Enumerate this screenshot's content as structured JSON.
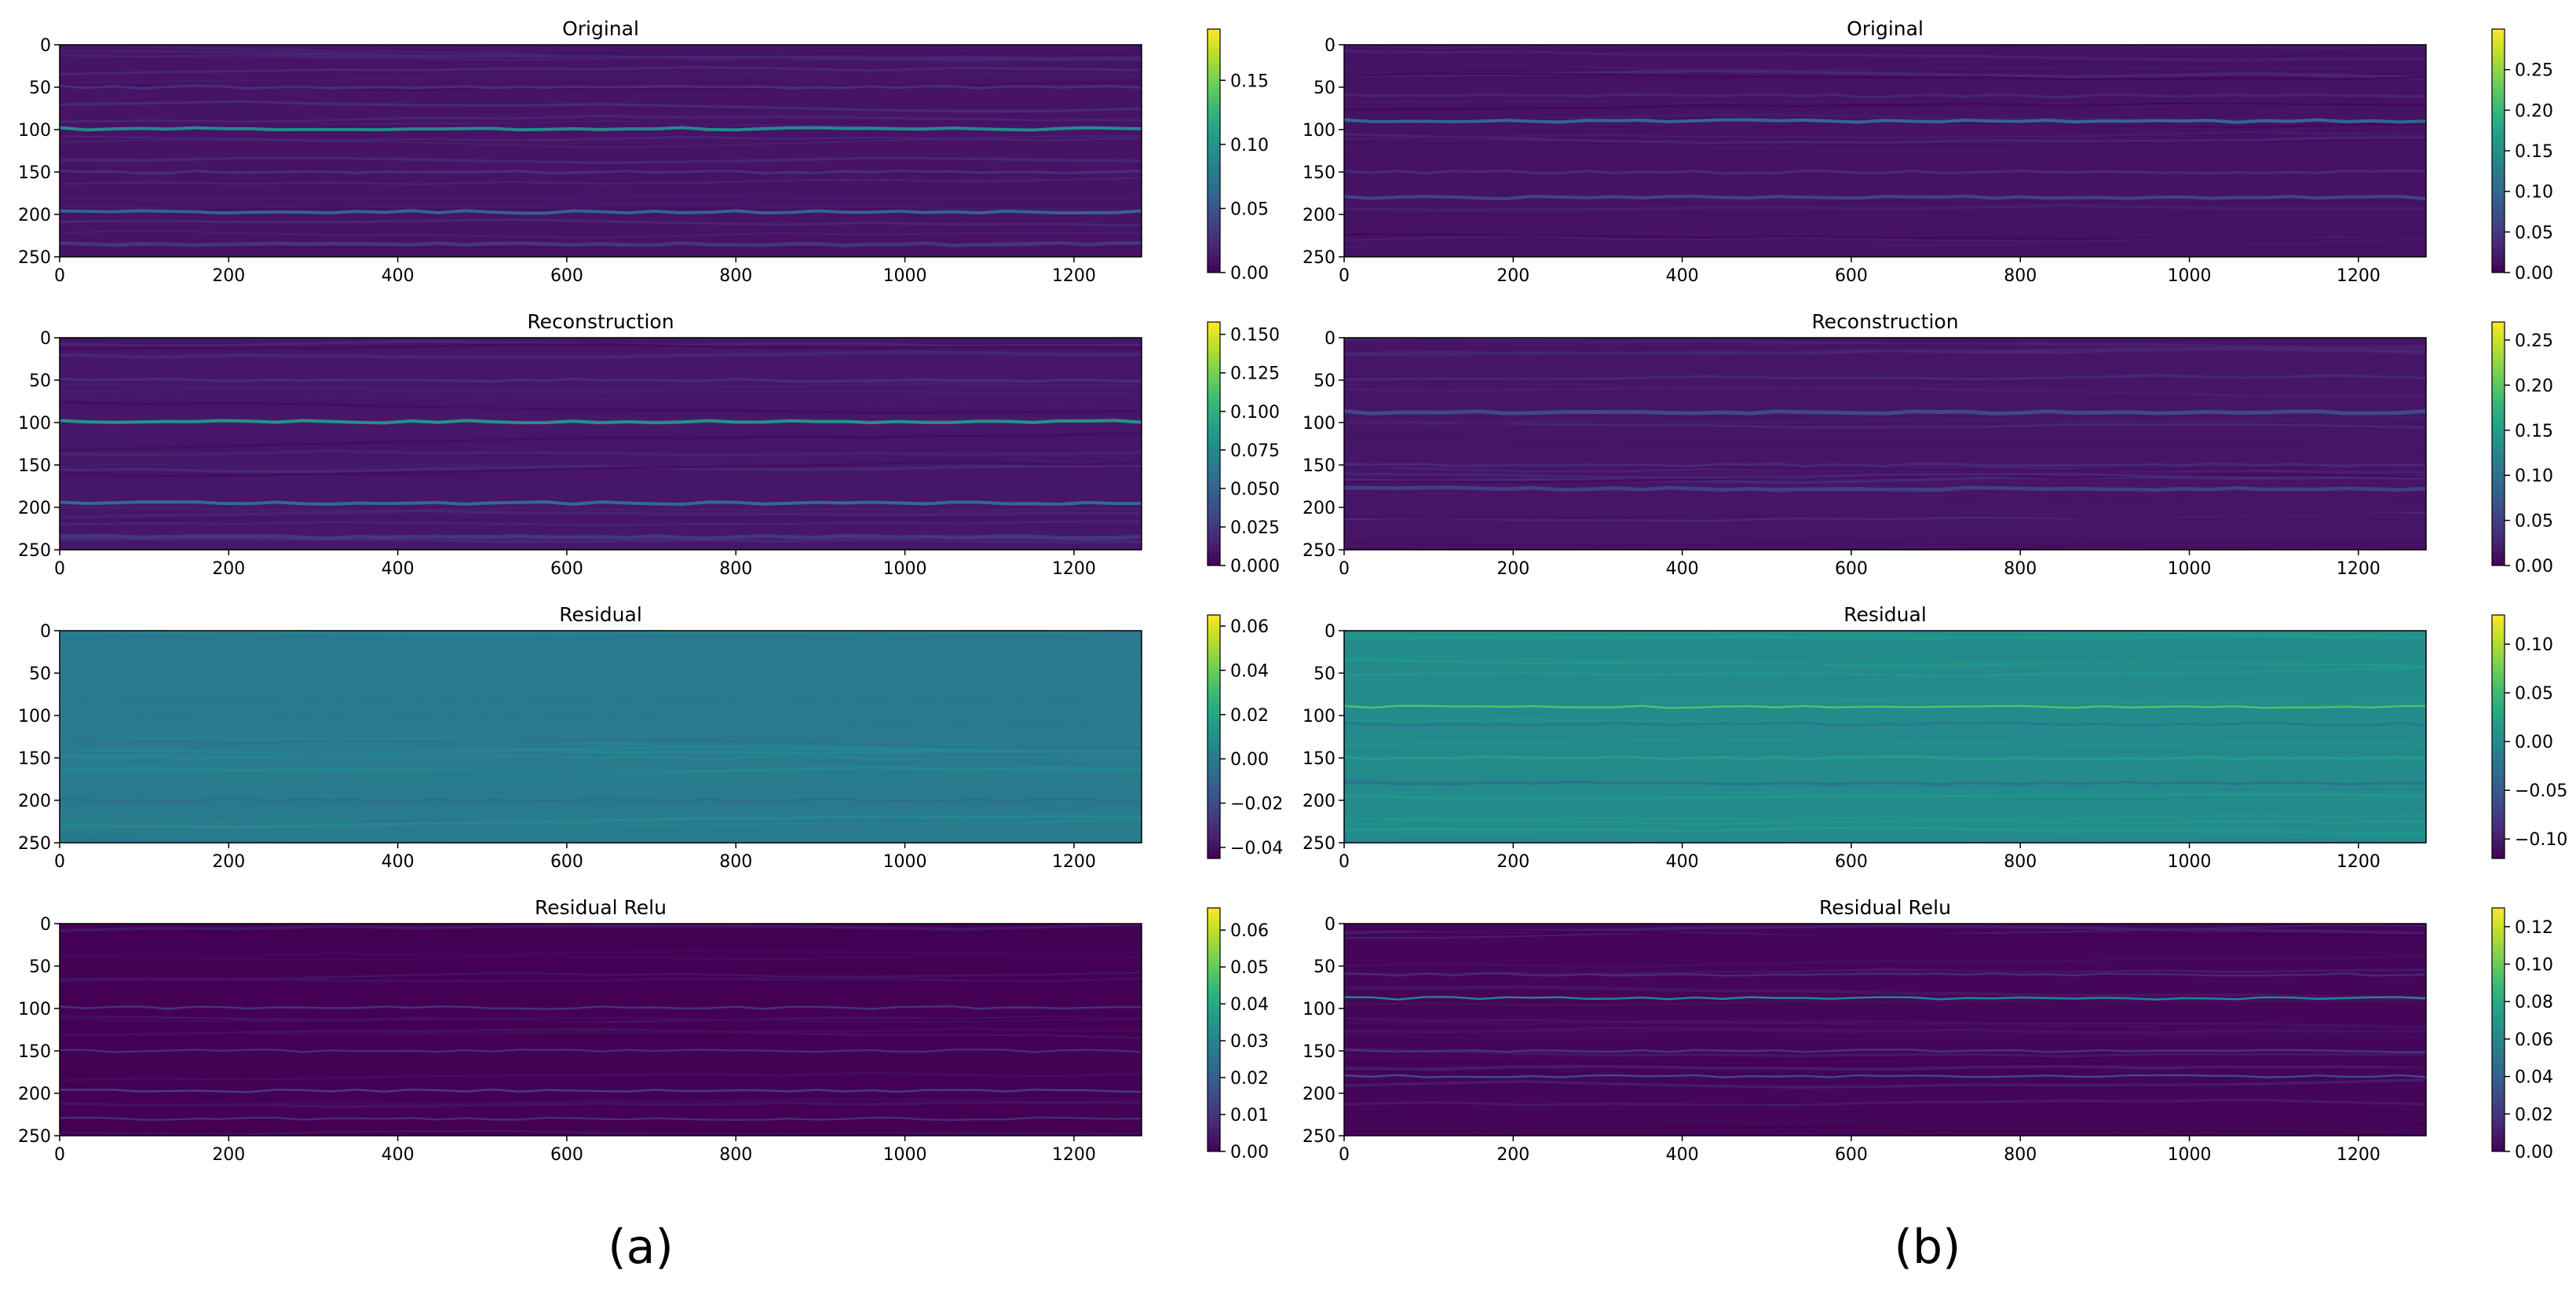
{
  "figure": {
    "panel_labels": [
      "(a)",
      "(b)"
    ]
  },
  "colormap": {
    "name": "viridis",
    "stops": [
      "#440154",
      "#482878",
      "#3e4a89",
      "#31688e",
      "#26828e",
      "#1f9e89",
      "#35b779",
      "#6ece58",
      "#b5de2b",
      "#fde725"
    ]
  },
  "chart_data": [
    {
      "type": "heatmap",
      "panel": "(a)",
      "title": "Original",
      "xlim": [
        0,
        1280
      ],
      "ylim": [
        250,
        0
      ],
      "xticks": [
        0,
        200,
        400,
        600,
        800,
        1000,
        1200
      ],
      "yticks": [
        0,
        50,
        100,
        150,
        200,
        250
      ],
      "colorbar": {
        "range": [
          0,
          0.19
        ],
        "ticks": [
          "0.00",
          "0.05",
          "0.10",
          "0.15"
        ]
      },
      "background_level": 0.01,
      "bands": [
        {
          "row": 99,
          "intensity": 0.09,
          "width": 2.5
        },
        {
          "row": 197,
          "intensity": 0.06,
          "width": 2.5
        },
        {
          "row": 235,
          "intensity": 0.03,
          "width": 3
        },
        {
          "row": 50,
          "intensity": 0.025,
          "width": 2
        },
        {
          "row": 150,
          "intensity": 0.025,
          "width": 2
        }
      ]
    },
    {
      "type": "heatmap",
      "panel": "(a)",
      "title": "Reconstruction",
      "xlim": [
        0,
        1280
      ],
      "ylim": [
        250,
        0
      ],
      "xticks": [
        0,
        200,
        400,
        600,
        800,
        1000,
        1200
      ],
      "yticks": [
        0,
        50,
        100,
        150,
        200,
        250
      ],
      "colorbar": {
        "range": [
          0,
          0.158
        ],
        "ticks": [
          "0.000",
          "0.025",
          "0.050",
          "0.075",
          "0.100",
          "0.125",
          "0.150"
        ]
      },
      "background_level": 0.01,
      "bands": [
        {
          "row": 99,
          "intensity": 0.08,
          "width": 2.5
        },
        {
          "row": 195,
          "intensity": 0.055,
          "width": 2.5
        },
        {
          "row": 235,
          "intensity": 0.025,
          "width": 3
        },
        {
          "row": 50,
          "intensity": 0.02,
          "width": 2
        }
      ]
    },
    {
      "type": "heatmap",
      "panel": "(a)",
      "title": "Residual",
      "xlim": [
        0,
        1280
      ],
      "ylim": [
        250,
        0
      ],
      "xticks": [
        0,
        200,
        400,
        600,
        800,
        1000,
        1200
      ],
      "yticks": [
        0,
        50,
        100,
        150,
        200,
        250
      ],
      "colorbar": {
        "range": [
          -0.045,
          0.065
        ],
        "ticks": [
          "−0.04",
          "−0.02",
          "0.00",
          "0.02",
          "0.04",
          "0.06"
        ]
      },
      "background_level": 0.0,
      "bands": [
        {
          "row": 200,
          "intensity": -0.006,
          "width": 2
        },
        {
          "row": 150,
          "intensity": 0.004,
          "width": 2
        }
      ]
    },
    {
      "type": "heatmap",
      "panel": "(a)",
      "title": "Residual Relu",
      "xlim": [
        0,
        1280
      ],
      "ylim": [
        250,
        0
      ],
      "xticks": [
        0,
        200,
        400,
        600,
        800,
        1000,
        1200
      ],
      "yticks": [
        0,
        50,
        100,
        150,
        200,
        250
      ],
      "colorbar": {
        "range": [
          0,
          0.066
        ],
        "ticks": [
          "0.00",
          "0.01",
          "0.02",
          "0.03",
          "0.04",
          "0.05",
          "0.06"
        ]
      },
      "background_level": 0.0,
      "bands": [
        {
          "row": 197,
          "intensity": 0.012,
          "width": 1.5
        },
        {
          "row": 99,
          "intensity": 0.01,
          "width": 1.5
        },
        {
          "row": 150,
          "intensity": 0.008,
          "width": 1.5
        },
        {
          "row": 230,
          "intensity": 0.008,
          "width": 1.5
        }
      ]
    },
    {
      "type": "heatmap",
      "panel": "(b)",
      "title": "Original",
      "xlim": [
        0,
        1280
      ],
      "ylim": [
        250,
        0
      ],
      "xticks": [
        0,
        200,
        400,
        600,
        800,
        1000,
        1200
      ],
      "yticks": [
        0,
        50,
        100,
        150,
        200,
        250
      ],
      "colorbar": {
        "range": [
          0,
          0.3
        ],
        "ticks": [
          "0.00",
          "0.05",
          "0.10",
          "0.15",
          "0.20",
          "0.25"
        ]
      },
      "background_level": 0.015,
      "bands": [
        {
          "row": 90,
          "intensity": 0.1,
          "width": 2.5
        },
        {
          "row": 180,
          "intensity": 0.06,
          "width": 2.5
        },
        {
          "row": 150,
          "intensity": 0.035,
          "width": 2
        },
        {
          "row": 60,
          "intensity": 0.03,
          "width": 2
        }
      ]
    },
    {
      "type": "heatmap",
      "panel": "(b)",
      "title": "Reconstruction",
      "xlim": [
        0,
        1280
      ],
      "ylim": [
        250,
        0
      ],
      "xticks": [
        0,
        200,
        400,
        600,
        800,
        1000,
        1200
      ],
      "yticks": [
        0,
        50,
        100,
        150,
        200,
        250
      ],
      "colorbar": {
        "range": [
          0,
          0.27
        ],
        "ticks": [
          "0.00",
          "0.05",
          "0.10",
          "0.15",
          "0.20",
          "0.25"
        ]
      },
      "background_level": 0.015,
      "bands": [
        {
          "row": 88,
          "intensity": 0.06,
          "width": 3
        },
        {
          "row": 178,
          "intensity": 0.05,
          "width": 3
        },
        {
          "row": 150,
          "intensity": 0.03,
          "width": 2
        }
      ]
    },
    {
      "type": "heatmap",
      "panel": "(b)",
      "title": "Residual",
      "xlim": [
        0,
        1280
      ],
      "ylim": [
        250,
        0
      ],
      "xticks": [
        0,
        200,
        400,
        600,
        800,
        1000,
        1200
      ],
      "yticks": [
        0,
        50,
        100,
        150,
        200,
        250
      ],
      "colorbar": {
        "range": [
          -0.12,
          0.13
        ],
        "ticks": [
          "−0.10",
          "−0.05",
          "0.00",
          "0.05",
          "0.10"
        ]
      },
      "background_level": 0.0,
      "bands": [
        {
          "row": 90,
          "intensity": 0.06,
          "width": 1.5
        },
        {
          "row": 150,
          "intensity": 0.02,
          "width": 2
        },
        {
          "row": 180,
          "intensity": -0.025,
          "width": 2
        },
        {
          "row": 110,
          "intensity": -0.02,
          "width": 2
        }
      ]
    },
    {
      "type": "heatmap",
      "panel": "(b)",
      "title": "Residual Relu",
      "xlim": [
        0,
        1280
      ],
      "ylim": [
        250,
        0
      ],
      "xticks": [
        0,
        200,
        400,
        600,
        800,
        1000,
        1200
      ],
      "yticks": [
        0,
        50,
        100,
        150,
        200,
        250
      ],
      "colorbar": {
        "range": [
          0,
          0.13
        ],
        "ticks": [
          "0.00",
          "0.02",
          "0.04",
          "0.06",
          "0.08",
          "0.10",
          "0.12"
        ]
      },
      "background_level": 0.002,
      "bands": [
        {
          "row": 88,
          "intensity": 0.06,
          "width": 1.5
        },
        {
          "row": 180,
          "intensity": 0.03,
          "width": 1.5
        },
        {
          "row": 150,
          "intensity": 0.02,
          "width": 1.5
        },
        {
          "row": 60,
          "intensity": 0.015,
          "width": 1.5
        }
      ]
    }
  ]
}
